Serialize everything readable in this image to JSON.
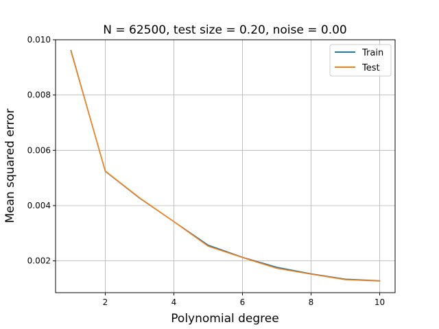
{
  "chart_data": {
    "type": "line",
    "title": "N = 62500, test size = 0.20, noise = 0.00",
    "xlabel": "Polynomial degree",
    "ylabel": "Mean squared error",
    "xlim": [
      0.55,
      10.45
    ],
    "ylim": [
      0.00085,
      0.01
    ],
    "xticks": [
      2,
      4,
      6,
      8,
      10
    ],
    "xtick_labels": [
      "2",
      "4",
      "6",
      "8",
      "10"
    ],
    "yticks": [
      0.002,
      0.004,
      0.006,
      0.008,
      0.01
    ],
    "ytick_labels": [
      "0.002",
      "0.004",
      "0.006",
      "0.008",
      "0.010"
    ],
    "grid": true,
    "legend_position": "top-right",
    "x": [
      1,
      2,
      3,
      4,
      5,
      6,
      7,
      8,
      9,
      10
    ],
    "series": [
      {
        "name": "Train",
        "color": "#1f77b4",
        "values": [
          0.00961,
          0.00524,
          0.00427,
          0.00342,
          0.00257,
          0.00213,
          0.00177,
          0.00153,
          0.00134,
          0.00128
        ]
      },
      {
        "name": "Test",
        "color": "#ff7f0e",
        "values": [
          0.00958,
          0.00525,
          0.00428,
          0.00342,
          0.00253,
          0.00212,
          0.00173,
          0.00152,
          0.00132,
          0.00127
        ]
      }
    ]
  }
}
